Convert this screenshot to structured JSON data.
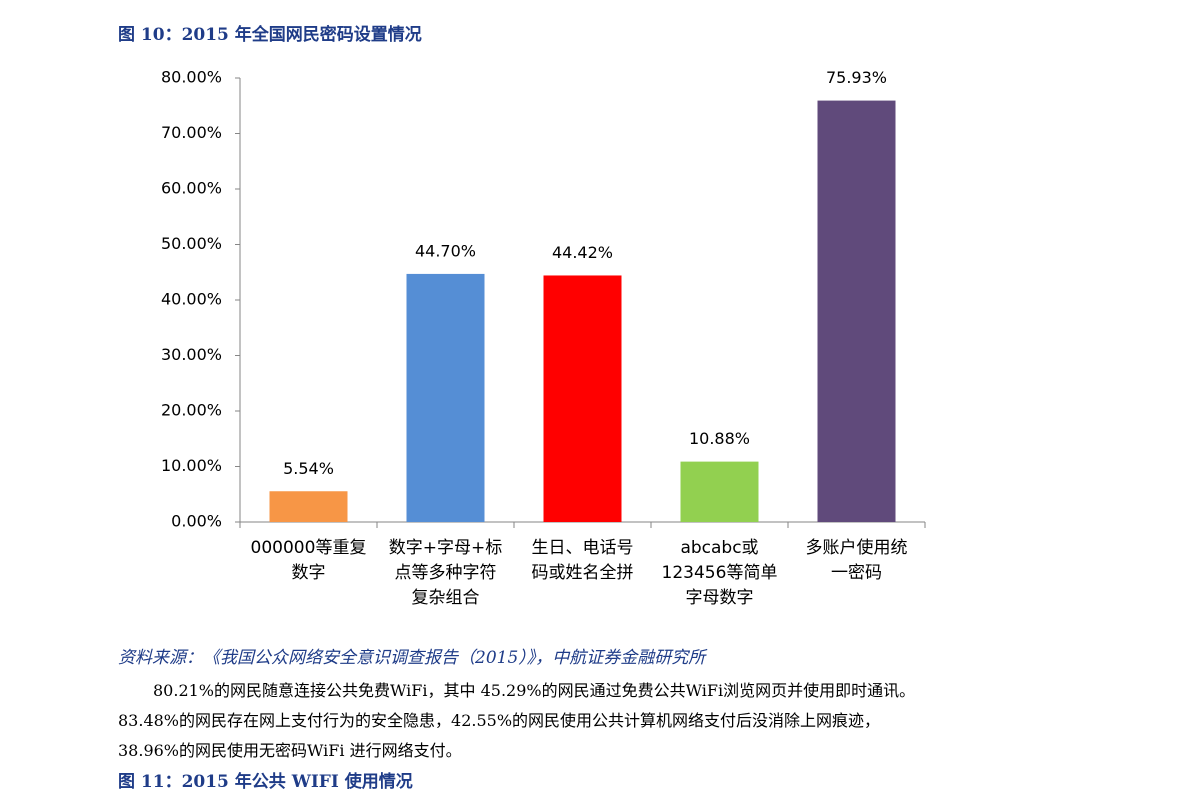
{
  "figure_title": "图 10：2015 年全国网民密码设置情况",
  "chart_data": {
    "type": "bar",
    "categories": [
      "000000等重复\n数字",
      "数字+字母+标\n点等多种字符\n复杂组合",
      "生日、电话号\n码或姓名全拼",
      "abcabc或\n123456等简单\n字母数字",
      "多账户使用统\n一密码"
    ],
    "values": [
      5.54,
      44.7,
      44.42,
      10.88,
      75.93
    ],
    "value_labels": [
      "5.54%",
      "44.70%",
      "44.42%",
      "10.88%",
      "75.93%"
    ],
    "colors": [
      "#f79646",
      "#558ed5",
      "#ff0000",
      "#92d050",
      "#604a7b"
    ],
    "ylim": [
      0,
      80
    ],
    "yticks": [
      {
        "value": 0,
        "label": "0.00%"
      },
      {
        "value": 10,
        "label": "10.00%"
      },
      {
        "value": 20,
        "label": "20.00%"
      },
      {
        "value": 30,
        "label": "30.00%"
      },
      {
        "value": 40,
        "label": "40.00%"
      },
      {
        "value": 50,
        "label": "50.00%"
      },
      {
        "value": 60,
        "label": "60.00%"
      },
      {
        "value": 70,
        "label": "70.00%"
      },
      {
        "value": 80,
        "label": "80.00%"
      }
    ],
    "grid": false
  },
  "source": "资料来源：《我国公众网络安全意识调查报告（2015）》，中航证券金融研究所",
  "paragraph": [
    "80.21%的网民随意连接公共免费WiFi，其中 45.29%的网民通过免费公共WiFi浏览网页并使用即时通讯。",
    "83.48%的网民存在网上支付行为的安全隐患，42.55%的网民使用公共计算机网络支付后没消除上网痕迹，",
    "38.96%的网民使用无密码WiFi 进行网络支付。"
  ],
  "next_figure_title": "图 11：2015 年公共 WIFI 使用情况"
}
